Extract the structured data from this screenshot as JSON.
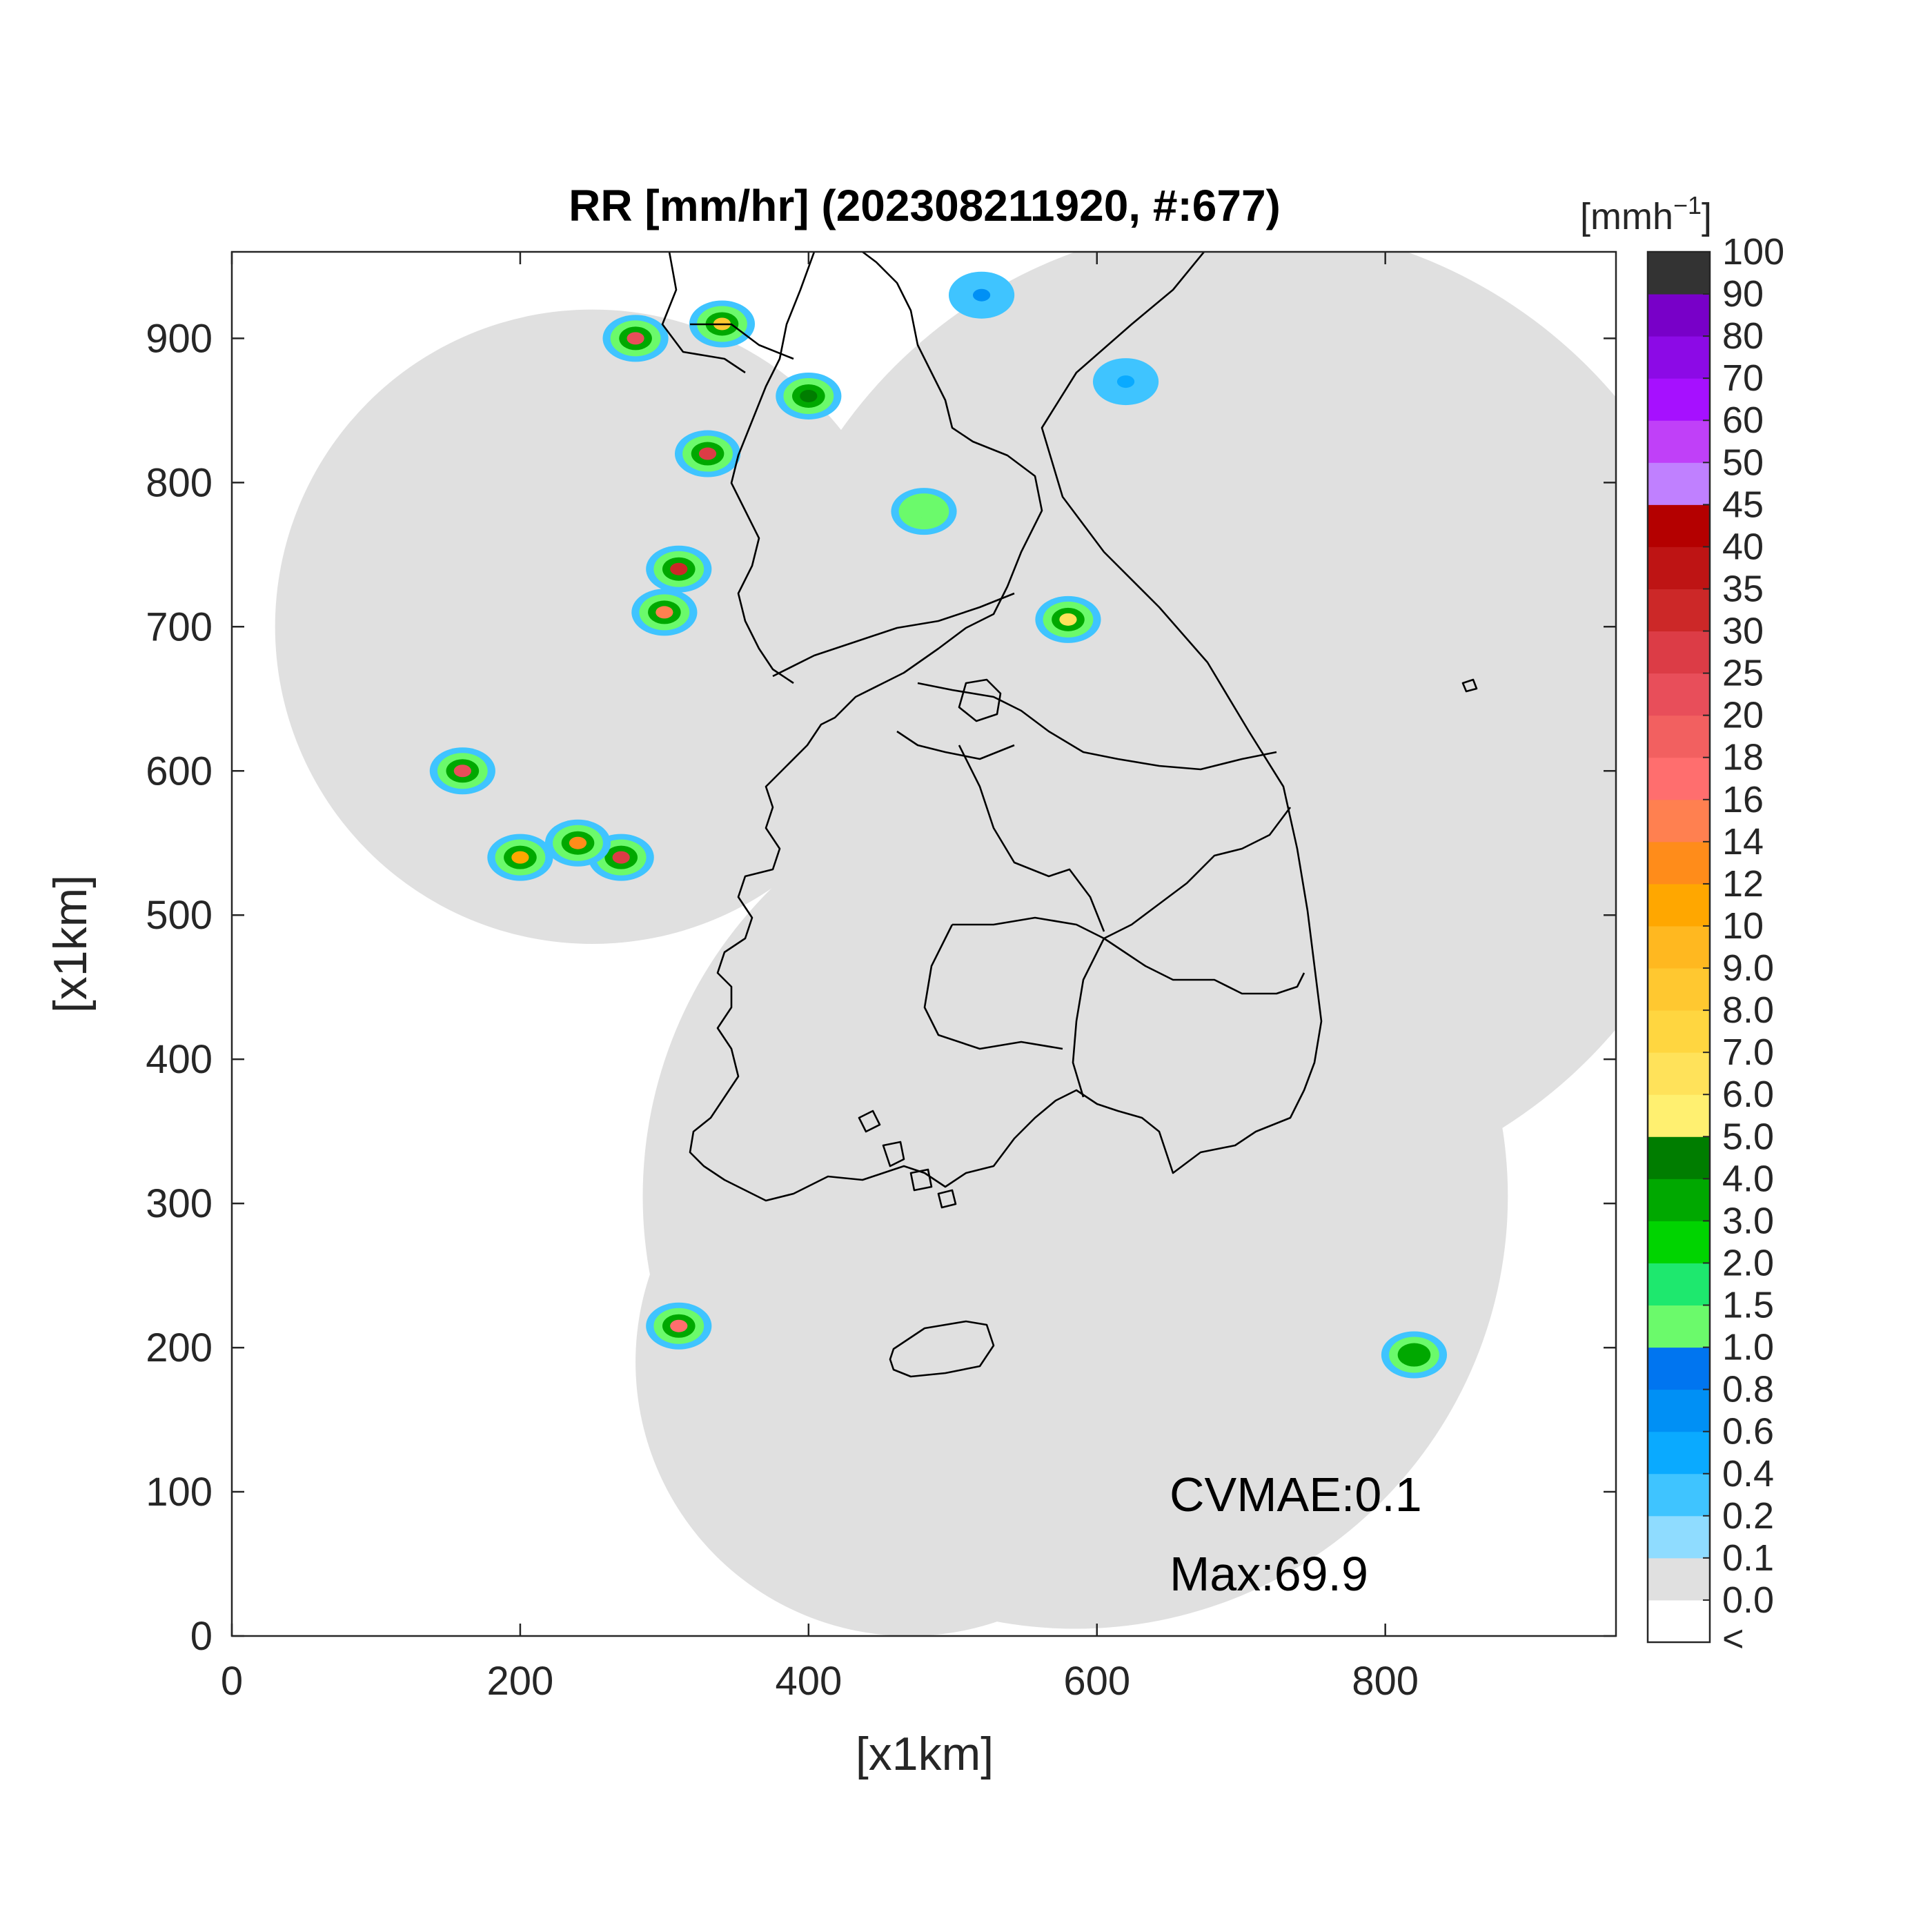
{
  "title": "RR [mm/hr] (202308211920, #:677)",
  "colorbar": {
    "unit_prefix": "[mmh",
    "unit_exp": "−1",
    "unit_suffix": "]",
    "labels": [
      "<",
      "0.0",
      "0.1",
      "0.2",
      "0.4",
      "0.6",
      "0.8",
      "1.0",
      "1.5",
      "2.0",
      "3.0",
      "4.0",
      "5.0",
      "6.0",
      "7.0",
      "8.0",
      "9.0",
      "10",
      "12",
      "14",
      "16",
      "18",
      "20",
      "25",
      "30",
      "35",
      "40",
      "45",
      "50",
      "60",
      "70",
      "80",
      "90",
      "100"
    ],
    "colors": [
      "#ffffff",
      "#e0e0e0",
      "#8fdcff",
      "#3fc4ff",
      "#0aaaff",
      "#0090f5",
      "#0075f0",
      "#6bfa6b",
      "#1ee86e",
      "#00d400",
      "#00a800",
      "#007d00",
      "#fff070",
      "#ffe25a",
      "#ffd640",
      "#ffc830",
      "#ffb820",
      "#ffa700",
      "#ff8c1a",
      "#ff8050",
      "#ff6e6e",
      "#f26060",
      "#e84e5a",
      "#dc3c46",
      "#cc2828",
      "#be1414",
      "#b40000",
      "#c080ff",
      "#c040f8",
      "#a610ff",
      "#8c0ae6",
      "#7800c8",
      "#333333"
    ]
  },
  "annotations": {
    "cvmae": "CVMAE:0.1",
    "max": "Max:69.9"
  },
  "chart_data": {
    "type": "heatmap",
    "title": "RR [mm/hr] (202308211920, #:677)",
    "xlabel": "[x1km]",
    "ylabel": "[x1km]",
    "xlim": [
      0,
      960
    ],
    "ylim": [
      0,
      960
    ],
    "xticks": [
      0,
      200,
      400,
      600,
      800
    ],
    "yticks": [
      0,
      100,
      200,
      300,
      400,
      500,
      600,
      700,
      800,
      900
    ],
    "colorbar_label": "[mmh−1]",
    "colorbar_levels": [
      "<",
      "0.0",
      "0.1",
      "0.2",
      "0.4",
      "0.6",
      "0.8",
      "1.0",
      "1.5",
      "2.0",
      "3.0",
      "4.0",
      "5.0",
      "6.0",
      "7.0",
      "8.0",
      "9.0",
      "10",
      "12",
      "14",
      "16",
      "18",
      "20",
      "25",
      "30",
      "35",
      "40",
      "45",
      "50",
      "60",
      "70",
      "80",
      "90",
      "100"
    ],
    "annotations": [
      "CVMAE:0.1",
      "Max:69.9"
    ],
    "max_value": 69.9,
    "cvmae": 0.1,
    "radar_coverage": [
      {
        "cx": 250,
        "cy": 700,
        "r": 220
      },
      {
        "cx": 585,
        "cy": 305,
        "r": 300
      },
      {
        "cx": 700,
        "cy": 640,
        "r": 340
      },
      {
        "cx": 470,
        "cy": 190,
        "r": 190
      }
    ],
    "rain_cells": [
      {
        "x": 280,
        "y": 900,
        "value": 20
      },
      {
        "x": 340,
        "y": 910,
        "value": 8
      },
      {
        "x": 330,
        "y": 820,
        "value": 25
      },
      {
        "x": 310,
        "y": 740,
        "value": 30
      },
      {
        "x": 300,
        "y": 710,
        "value": 14
      },
      {
        "x": 160,
        "y": 600,
        "value": 20
      },
      {
        "x": 270,
        "y": 540,
        "value": 25
      },
      {
        "x": 240,
        "y": 550,
        "value": 12
      },
      {
        "x": 200,
        "y": 540,
        "value": 10
      },
      {
        "x": 310,
        "y": 215,
        "value": 16
      },
      {
        "x": 580,
        "y": 705,
        "value": 6
      },
      {
        "x": 400,
        "y": 860,
        "value": 4
      },
      {
        "x": 480,
        "y": 780,
        "value": 1
      },
      {
        "x": 520,
        "y": 930,
        "value": 0.6
      },
      {
        "x": 620,
        "y": 870,
        "value": 0.4
      },
      {
        "x": 820,
        "y": 195,
        "value": 3
      }
    ]
  }
}
